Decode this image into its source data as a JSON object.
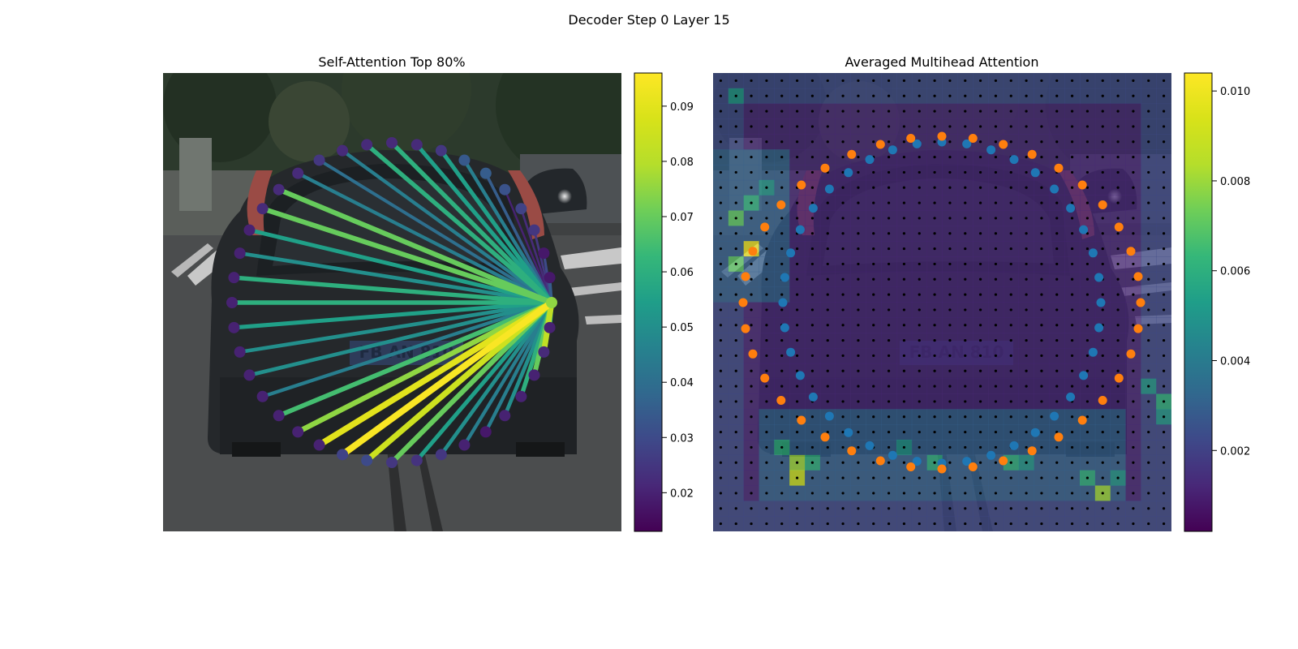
{
  "figure_title": "Decoder Step 0 Layer 15",
  "chart_data": [
    {
      "type": "other",
      "title": "Self-Attention Top 80%",
      "background": "photo of the rear of a dark hatchback car on a city street",
      "colormap": "viridis",
      "colorbar": {
        "min": 0.013,
        "max": 0.096,
        "ticks": [
          0.02,
          0.03,
          0.04,
          0.05,
          0.06,
          0.07,
          0.08,
          0.09
        ]
      },
      "query_angle_deg": 0,
      "node_count": 40,
      "attention": [
        0.05,
        0.035,
        0.03,
        0.025,
        0.022,
        0.02,
        0.035,
        0.045,
        0.055,
        0.055,
        0.06,
        0.06,
        0.045,
        0.04,
        0.045,
        0.07,
        0.07,
        0.055,
        0.05,
        0.06,
        0.06,
        0.055,
        0.05,
        0.05,
        0.045,
        0.065,
        0.075,
        0.09,
        0.095,
        0.085,
        0.07,
        0.055,
        0.05,
        0.045,
        0.045,
        0.05,
        0.06,
        0.07,
        0.082,
        0.06
      ],
      "node_colors": [
        0.075,
        0.018,
        0.018,
        0.025,
        0.028,
        0.032,
        0.035,
        0.034,
        0.025,
        0.022,
        0.022,
        0.022,
        0.022,
        0.025,
        0.022,
        0.022,
        0.022,
        0.02,
        0.02,
        0.02,
        0.02,
        0.02,
        0.02,
        0.02,
        0.02,
        0.02,
        0.02,
        0.02,
        0.028,
        0.03,
        0.025,
        0.024,
        0.025,
        0.02,
        0.018,
        0.02,
        0.02,
        0.02,
        0.022,
        0.02
      ]
    },
    {
      "type": "heatmap",
      "title": "Averaged Multihead Attention",
      "background": "same car photo under a translucent attention heatmap with a dotted sampling grid",
      "colormap": "viridis",
      "colorbar": {
        "min": 0.0002,
        "max": 0.0104,
        "ticks": [
          0.002,
          0.004,
          0.006,
          0.008,
          0.01
        ]
      },
      "grid_size": 30,
      "hotspots": [
        {
          "row": 1,
          "col": 1,
          "value": 0.005
        },
        {
          "row": 8,
          "col": 2,
          "value": 0.006
        },
        {
          "row": 9,
          "col": 1,
          "value": 0.007
        },
        {
          "row": 11,
          "col": 2,
          "value": 0.01
        },
        {
          "row": 12,
          "col": 1,
          "value": 0.007
        },
        {
          "row": 7,
          "col": 3,
          "value": 0.005
        },
        {
          "row": 24,
          "col": 4,
          "value": 0.006
        },
        {
          "row": 25,
          "col": 5,
          "value": 0.008
        },
        {
          "row": 26,
          "col": 5,
          "value": 0.009
        },
        {
          "row": 25,
          "col": 6,
          "value": 0.006
        },
        {
          "row": 24,
          "col": 12,
          "value": 0.005
        },
        {
          "row": 25,
          "col": 14,
          "value": 0.006
        },
        {
          "row": 25,
          "col": 19,
          "value": 0.006
        },
        {
          "row": 25,
          "col": 20,
          "value": 0.005
        },
        {
          "row": 26,
          "col": 24,
          "value": 0.006
        },
        {
          "row": 27,
          "col": 25,
          "value": 0.008
        },
        {
          "row": 26,
          "col": 26,
          "value": 0.005
        },
        {
          "row": 20,
          "col": 28,
          "value": 0.005
        },
        {
          "row": 21,
          "col": 29,
          "value": 0.006
        },
        {
          "row": 22,
          "col": 29,
          "value": 0.005
        }
      ],
      "series": [
        {
          "color": "#1f77b4",
          "count": 40
        },
        {
          "color": "#ff7f0e",
          "count": 40
        }
      ]
    }
  ]
}
